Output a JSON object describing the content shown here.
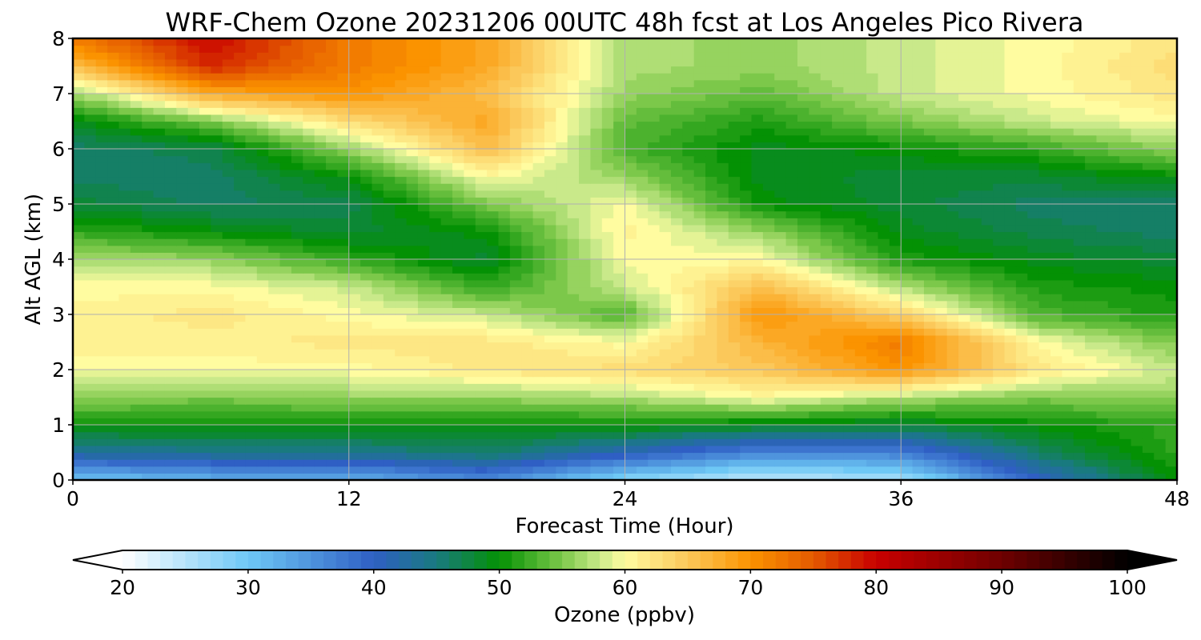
{
  "chart_data": {
    "type": "heatmap",
    "title": "WRF-Chem Ozone  20231206 00UTC 48h fcst at Los Angeles Pico Rivera",
    "xlabel": "Forecast Time (Hour)",
    "ylabel": "Alt AGL (km)",
    "xlim": [
      0,
      48
    ],
    "ylim": [
      0,
      8
    ],
    "xticks": [
      0,
      12,
      24,
      36,
      48
    ],
    "yticks": [
      0,
      1,
      2,
      3,
      4,
      5,
      6,
      7,
      8
    ],
    "grid": true,
    "colorbar": {
      "label": "Ozone  (ppbv)",
      "min": 20,
      "max": 100,
      "ticks": [
        20,
        30,
        40,
        50,
        60,
        70,
        80,
        90,
        100
      ],
      "extend": "both",
      "min_color": "#ffffff",
      "max_color": "#000000",
      "stops": [
        {
          "v": 20,
          "c": "#ffffff"
        },
        {
          "v": 30,
          "c": "#6ec8f5"
        },
        {
          "v": 40,
          "c": "#2f5fc4"
        },
        {
          "v": 45,
          "c": "#197a7f"
        },
        {
          "v": 50,
          "c": "#049104"
        },
        {
          "v": 55,
          "c": "#7cc84a"
        },
        {
          "v": 58,
          "c": "#c9e98a"
        },
        {
          "v": 60,
          "c": "#fffca0"
        },
        {
          "v": 65,
          "c": "#fbc85a"
        },
        {
          "v": 70,
          "c": "#fb9300"
        },
        {
          "v": 75,
          "c": "#e45a00"
        },
        {
          "v": 80,
          "c": "#c80000"
        },
        {
          "v": 90,
          "c": "#6e0000"
        },
        {
          "v": 100,
          "c": "#000000"
        }
      ]
    },
    "x": [
      0,
      6,
      12,
      18,
      24,
      30,
      36,
      42,
      48
    ],
    "y": [
      0,
      0.5,
      1,
      1.5,
      2,
      2.5,
      3,
      3.5,
      4,
      4.5,
      5,
      5.5,
      6,
      6.5,
      7,
      7.5,
      8
    ],
    "z": [
      [
        30,
        32,
        32,
        36,
        28,
        24,
        26,
        40,
        50
      ],
      [
        43,
        44,
        44,
        46,
        41,
        36,
        37,
        46,
        52
      ],
      [
        50,
        50,
        50,
        50,
        50,
        49,
        48,
        50,
        52
      ],
      [
        56,
        55,
        56,
        56,
        57,
        60,
        57,
        55,
        56
      ],
      [
        60,
        60,
        60,
        62,
        63,
        65,
        70,
        62,
        58
      ],
      [
        61,
        61,
        62,
        62,
        60,
        67,
        72,
        60,
        55
      ],
      [
        61,
        62,
        60,
        58,
        53,
        70,
        64,
        53,
        51
      ],
      [
        60,
        60,
        58,
        52,
        58,
        66,
        57,
        51,
        50
      ],
      [
        57,
        56,
        52,
        48,
        60,
        60,
        51,
        49,
        48
      ],
      [
        52,
        50,
        48,
        50,
        61,
        56,
        49,
        47,
        46
      ],
      [
        48,
        46,
        47,
        55,
        60,
        50,
        48,
        46,
        46
      ],
      [
        46,
        46,
        50,
        60,
        56,
        49,
        48,
        48,
        50
      ],
      [
        46,
        47,
        56,
        66,
        53,
        49,
        50,
        52,
        56
      ],
      [
        49,
        55,
        63,
        68,
        54,
        51,
        55,
        58,
        60
      ],
      [
        56,
        68,
        70,
        66,
        56,
        54,
        58,
        60,
        62
      ],
      [
        66,
        78,
        72,
        68,
        57,
        56,
        58,
        60,
        63
      ],
      [
        72,
        80,
        72,
        68,
        57,
        56,
        58,
        60,
        62
      ]
    ]
  }
}
